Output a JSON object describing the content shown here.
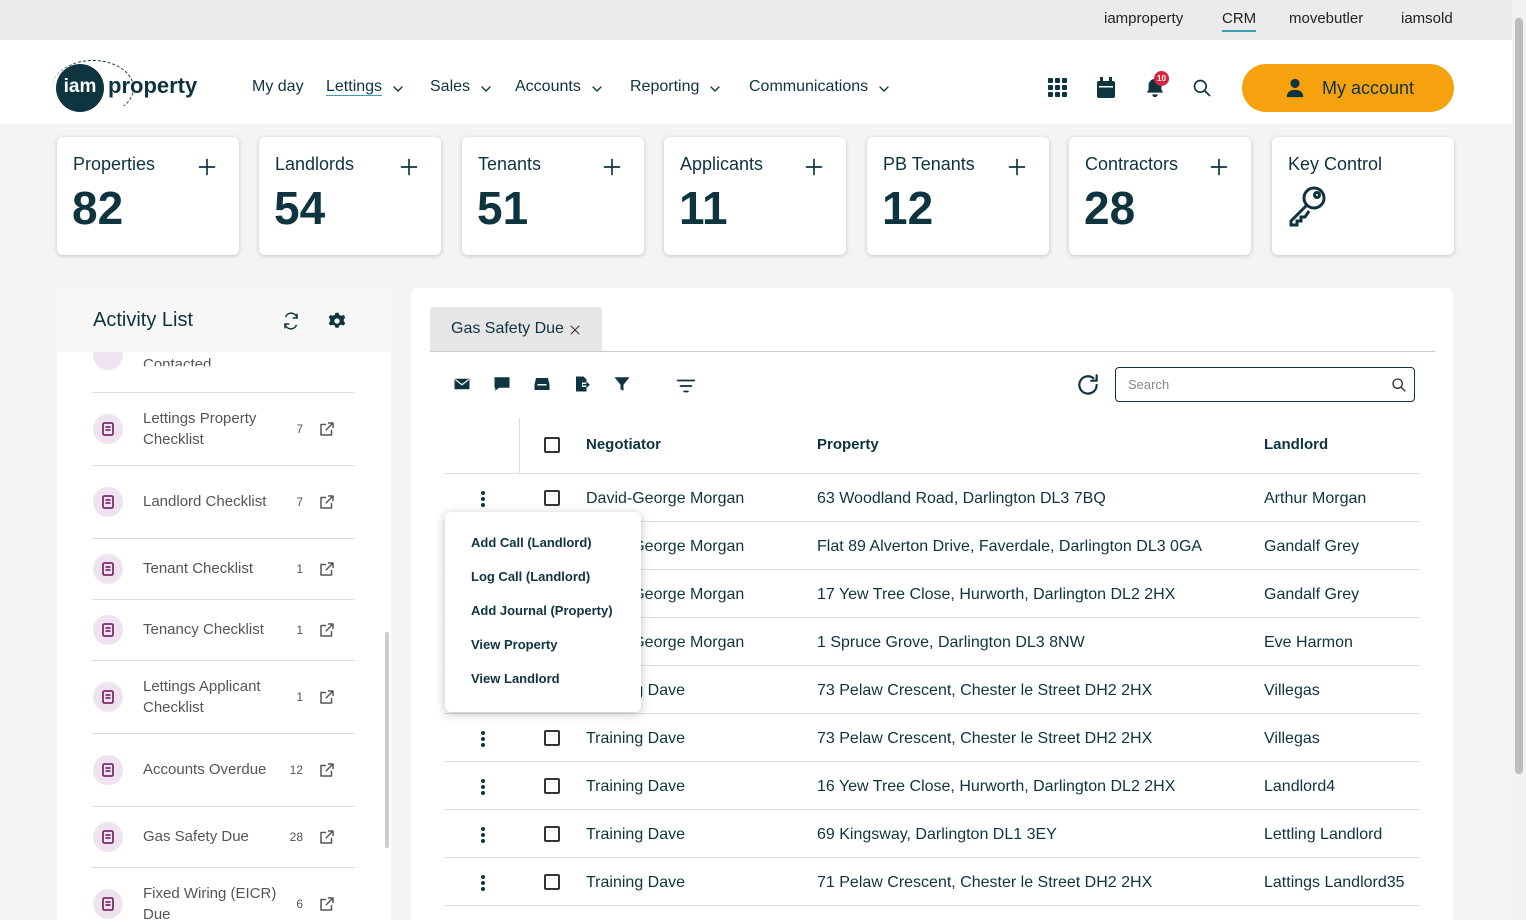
{
  "topbar": {
    "links": [
      "iamproperty",
      "CRM",
      "movebutler",
      "iamsold"
    ]
  },
  "logo": {
    "mark": "iam",
    "word": "property"
  },
  "nav": [
    "My day",
    "Lettings",
    "Sales",
    "Accounts",
    "Reporting",
    "Communications"
  ],
  "notifications": "10",
  "account": "My account",
  "stats": [
    {
      "label": "Properties",
      "value": 82
    },
    {
      "label": "Landlords",
      "value": 54
    },
    {
      "label": "Tenants",
      "value": 51
    },
    {
      "label": "Applicants",
      "value": 11
    },
    {
      "label": "PB Tenants",
      "value": 12
    },
    {
      "label": "Contractors",
      "value": 28
    },
    {
      "label": "Key Control"
    }
  ],
  "activity": {
    "title": "Activity List",
    "partial": "Contacted",
    "items": [
      {
        "label": "Lettings Property Checklist",
        "count": 7
      },
      {
        "label": "Landlord Checklist",
        "count": 7
      },
      {
        "label": "Tenant Checklist",
        "count": 1
      },
      {
        "label": "Tenancy Checklist",
        "count": 1
      },
      {
        "label": "Lettings Applicant Checklist",
        "count": 1
      },
      {
        "label": "Accounts Overdue",
        "count": 12
      },
      {
        "label": "Gas Safety Due",
        "count": 28
      },
      {
        "label": "Fixed Wiring (EICR) Due",
        "count": 6
      }
    ]
  },
  "tab": "Gas Safety Due",
  "search": "Search",
  "table": {
    "headers": [
      "Negotiator",
      "Property",
      "Landlord"
    ],
    "rows": [
      [
        "David-George Morgan",
        "63 Woodland Road, Darlington DL3 7BQ",
        "Arthur Morgan"
      ],
      [
        "David-George Morgan",
        "Flat 89 Alverton Drive, Faverdale, Darlington DL3 0GA",
        "Gandalf Grey"
      ],
      [
        "David-George Morgan",
        "17 Yew Tree Close, Hurworth, Darlington DL2 2HX",
        "Gandalf Grey"
      ],
      [
        "David-George Morgan",
        "1 Spruce Grove, Darlington DL3 8NW",
        "Eve Harmon"
      ],
      [
        "Training Dave",
        "73 Pelaw Crescent, Chester le Street DH2 2HX",
        "Villegas"
      ],
      [
        "Training Dave",
        "73 Pelaw Crescent, Chester le Street DH2 2HX",
        "Villegas"
      ],
      [
        "Training Dave",
        "16 Yew Tree Close, Hurworth, Darlington DL2 2HX",
        "Landlord4"
      ],
      [
        "Training Dave",
        "69 Kingsway, Darlington DL1 3EY",
        "Lettling Landlord"
      ],
      [
        "Training Dave",
        "71 Pelaw Crescent, Chester le Street DH2 2HX",
        "Lattings Landlord35"
      ]
    ]
  },
  "menu": [
    "Add Call (Landlord)",
    "Log Call (Landlord)",
    "Add Journal (Property)",
    "View Property",
    "View Landlord"
  ]
}
